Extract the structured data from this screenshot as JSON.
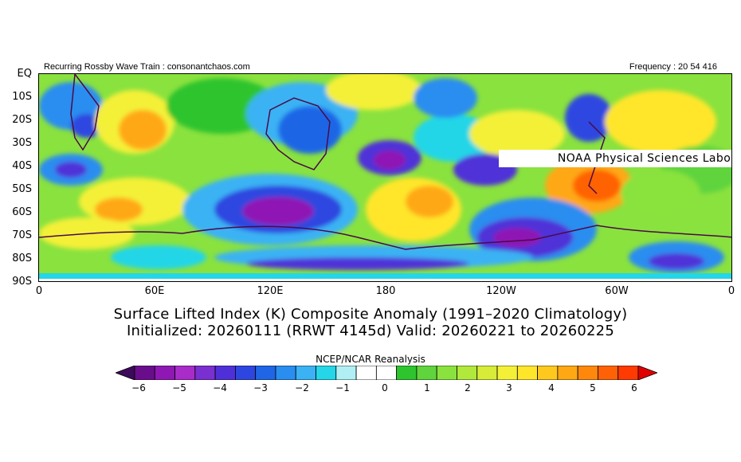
{
  "header": {
    "left": "Recurring Rossby Wave Train : consonantchaos.com",
    "right": "Frequency : 20 54 416",
    "lab": "NOAA Physical Sciences Laboratory"
  },
  "axes": {
    "y_labels": [
      "EQ",
      "10S",
      "20S",
      "30S",
      "40S",
      "50S",
      "60S",
      "70S",
      "80S",
      "90S"
    ],
    "x_labels": [
      "0",
      "60E",
      "120E",
      "180",
      "120W",
      "60W",
      "0"
    ]
  },
  "title": {
    "line1": "Surface Lifted Index (K) Composite Anomaly (1991–2020 Climatology)",
    "line2": "Initialized: 20260111 (RRWT 4145d) Valid: 20260221 to 20260225"
  },
  "colorbar": {
    "title": "NCEP/NCAR Reanalysis",
    "labels": [
      "−6",
      "−5",
      "−4",
      "−3",
      "−2",
      "−1",
      "0",
      "1",
      "2",
      "3",
      "4",
      "5",
      "6"
    ],
    "colors": [
      "#3c0a5a",
      "#6a0d8c",
      "#8f18b4",
      "#a92bc8",
      "#7a2fd0",
      "#4f30d8",
      "#2e46e0",
      "#1f66e6",
      "#2a8df0",
      "#3bb2f4",
      "#24d6e8",
      "#b0f0f4",
      "#ffffff",
      "#ffffff",
      "#2ec42e",
      "#5fd43c",
      "#8ae23e",
      "#b0e83c",
      "#d6ec38",
      "#f4f038",
      "#ffe62a",
      "#ffc81e",
      "#ffa814",
      "#ff880c",
      "#ff6206",
      "#ff3a02",
      "#e00000"
    ]
  }
}
